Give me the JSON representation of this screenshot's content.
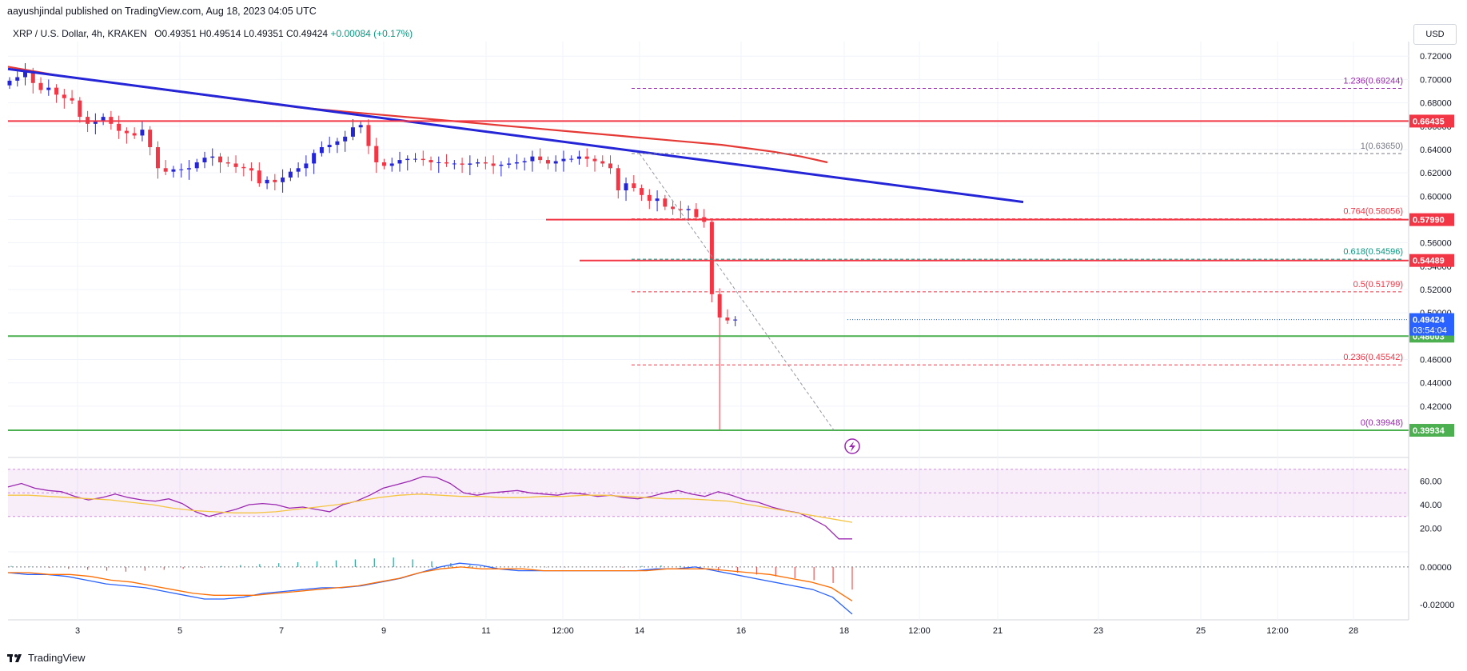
{
  "header": {
    "publisher": "aayushjindal published on TradingView.com, Aug 18, 2023 04:05 UTC",
    "symbol": "XRP / U.S. Dollar, 4h, KRAKEN",
    "open": "O0.49351",
    "high": "H0.49514",
    "low": "L0.49351",
    "close": "C0.49424",
    "change": "+0.00084 (+0.17%)",
    "currency": "USD"
  },
  "brand": {
    "label": "TradingView"
  },
  "colors": {
    "up": "#089981",
    "down": "#f23645",
    "trendline": "#2525d8",
    "ma": "#e53935",
    "resistance": "#f23645",
    "support": "#4caf50",
    "rsi": "#9c27b0",
    "rsi_ma": "#f5c542",
    "macd": "#2962ff",
    "signal": "#ff6d00",
    "fib": "#9c27b0",
    "price_tag": "#2962ff"
  },
  "chart_data": [
    {
      "type": "candlestick",
      "title": "XRP / U.S. Dollar, 4h, KRAKEN",
      "x_tick_labels": [
        "3",
        "5",
        "7",
        "9",
        "11",
        "12:00",
        "14",
        "16",
        "18",
        "12:00",
        "21",
        "23",
        "25",
        "12:00",
        "28"
      ],
      "y_tick_labels": [
        "0.72000",
        "0.70000",
        "0.68000",
        "0.66000",
        "0.64000",
        "0.62000",
        "0.60000",
        "0.58000",
        "0.56000",
        "0.54000",
        "0.52000",
        "0.50000",
        "0.46000",
        "0.44000",
        "0.42000"
      ],
      "ylim": [
        0.3925,
        0.7325
      ],
      "close_prices": [
        0.699,
        0.702,
        0.707,
        0.697,
        0.691,
        0.693,
        0.687,
        0.684,
        0.682,
        0.668,
        0.662,
        0.664,
        0.668,
        0.662,
        0.656,
        0.654,
        0.652,
        0.657,
        0.642,
        0.624,
        0.621,
        0.623,
        0.623,
        0.624,
        0.629,
        0.633,
        0.634,
        0.629,
        0.628,
        0.625,
        0.624,
        0.622,
        0.611,
        0.614,
        0.612,
        0.616,
        0.621,
        0.624,
        0.628,
        0.637,
        0.642,
        0.644,
        0.647,
        0.651,
        0.659,
        0.661,
        0.643,
        0.629,
        0.626,
        0.628,
        0.631,
        0.632,
        0.632,
        0.631,
        0.629,
        0.629,
        0.628,
        0.628,
        0.627,
        0.628,
        0.629,
        0.628,
        0.626,
        0.627,
        0.628,
        0.629,
        0.63,
        0.634,
        0.631,
        0.628,
        0.63,
        0.632,
        0.632,
        0.634,
        0.632,
        0.63,
        0.628,
        0.624,
        0.605,
        0.611,
        0.607,
        0.601,
        0.596,
        0.598,
        0.591,
        0.589,
        0.588,
        0.589,
        0.582,
        0.578,
        0.516,
        0.496,
        0.4935,
        0.49424
      ],
      "ma200": [
        0.711,
        0.707,
        0.703,
        0.7,
        0.697,
        0.694,
        0.691,
        0.688,
        0.685,
        0.682,
        0.679,
        0.676,
        0.674,
        0.672,
        0.67,
        0.668,
        0.666,
        0.664,
        0.662,
        0.66,
        0.658,
        0.656,
        0.654,
        0.652,
        0.65,
        0.648,
        0.646,
        0.644,
        0.641,
        0.638,
        0.634,
        0.629
      ],
      "trendline": {
        "start": 0.709,
        "end": 0.595
      },
      "horizontal_levels": [
        {
          "name": "resistance",
          "label": "0.66435",
          "value": 0.66435
        },
        {
          "name": "resistance",
          "label": "0.57990",
          "value": 0.5799
        },
        {
          "name": "resistance",
          "label": "0.54489",
          "value": 0.54489
        },
        {
          "name": "support",
          "label": "0.48003",
          "value": 0.48003
        },
        {
          "name": "support",
          "label": "0.39934",
          "value": 0.39934
        }
      ],
      "fibonacci": [
        {
          "ratio": "1.236",
          "label": "1.236(0.69244)",
          "value": 0.69244
        },
        {
          "ratio": "1",
          "label": "1(0.63650)",
          "value": 0.6365
        },
        {
          "ratio": "0.764",
          "label": "0.764(0.58056)",
          "value": 0.58056
        },
        {
          "ratio": "0.618",
          "label": "0.618(0.54596)",
          "value": 0.54596
        },
        {
          "ratio": "0.5",
          "label": "0.5(0.51799)",
          "value": 0.51799
        },
        {
          "ratio": "0.236",
          "label": "0.236(0.45542)",
          "value": 0.45542
        },
        {
          "ratio": "0",
          "label": "0(0.39948)",
          "value": 0.39948
        }
      ],
      "last_price": {
        "label": "0.49424",
        "countdown": "03:54:04",
        "value": 0.49424
      }
    },
    {
      "type": "line",
      "title": "RSI",
      "y_tick_labels": [
        "60.00",
        "40.00",
        "20.00"
      ],
      "ylim": [
        0,
        78
      ],
      "band": [
        30,
        70
      ],
      "series": [
        {
          "name": "rsi",
          "values": [
            55,
            58,
            54,
            52,
            51,
            47,
            44,
            46,
            49,
            46,
            44,
            43,
            45,
            41,
            34,
            30,
            33,
            36,
            40,
            41,
            40,
            37,
            38,
            36,
            34,
            40,
            43,
            48,
            54,
            57,
            60,
            64,
            63,
            58,
            50,
            48,
            50,
            51,
            52,
            50,
            49,
            48,
            50,
            49,
            47,
            48,
            46,
            45,
            47,
            50,
            52,
            49,
            47,
            51,
            48,
            44,
            42,
            38,
            35,
            33,
            28,
            22,
            11,
            11
          ]
        },
        {
          "name": "rsi-ma",
          "values": [
            48,
            48,
            47,
            46,
            45,
            44,
            42,
            40,
            37,
            35,
            34,
            33,
            33,
            34,
            36,
            38,
            40,
            43,
            46,
            48,
            49,
            48,
            47,
            47,
            46,
            46,
            47,
            47,
            48,
            48,
            47,
            46,
            45,
            45,
            44,
            43,
            40,
            37,
            34,
            31,
            28,
            25
          ]
        }
      ]
    },
    {
      "type": "line",
      "title": "MACD",
      "y_tick_labels": [
        "0.00000",
        "-0.02000"
      ],
      "ylim": [
        -0.028,
        0.008
      ],
      "series": [
        {
          "name": "macd",
          "values": [
            -0.003,
            -0.004,
            -0.004,
            -0.005,
            -0.007,
            -0.009,
            -0.01,
            -0.011,
            -0.013,
            -0.015,
            -0.017,
            -0.017,
            -0.016,
            -0.014,
            -0.013,
            -0.012,
            -0.011,
            -0.011,
            -0.01,
            -0.008,
            -0.006,
            -0.003,
            0.0,
            0.002,
            0.001,
            -0.001,
            -0.002,
            -0.002,
            -0.002,
            -0.002,
            -0.002,
            -0.002,
            -0.002,
            -0.001,
            -0.001,
            0.0,
            -0.002,
            -0.004,
            -0.006,
            -0.008,
            -0.01,
            -0.012,
            -0.016,
            -0.025
          ]
        },
        {
          "name": "signal",
          "values": [
            -0.003,
            -0.003,
            -0.004,
            -0.004,
            -0.005,
            -0.007,
            -0.008,
            -0.01,
            -0.012,
            -0.014,
            -0.015,
            -0.015,
            -0.015,
            -0.014,
            -0.013,
            -0.012,
            -0.011,
            -0.01,
            -0.008,
            -0.006,
            -0.003,
            -0.001,
            0.0,
            -0.001,
            -0.001,
            -0.001,
            -0.002,
            -0.002,
            -0.002,
            -0.002,
            -0.002,
            -0.002,
            -0.001,
            -0.001,
            -0.001,
            -0.002,
            -0.003,
            -0.004,
            -0.006,
            -0.008,
            -0.011,
            -0.018
          ]
        },
        {
          "name": "histogram",
          "values": [
            0.0005,
            0.0002,
            -0.0005,
            -0.001,
            -0.0015,
            -0.002,
            -0.0025,
            -0.002,
            -0.0015,
            -0.001,
            -0.0005,
            0.0005,
            0.001,
            0.0015,
            0.002,
            0.0025,
            0.003,
            0.0035,
            0.004,
            0.0045,
            0.005,
            0.004,
            0.003,
            0.002,
            0.001,
            0.0005,
            -0.0002,
            -0.0002,
            -0.0002,
            -0.0002,
            -0.0002,
            -0.0002,
            -0.0003,
            0.0005,
            0.0008,
            0.0005,
            -0.001,
            -0.002,
            -0.003,
            -0.004,
            -0.005,
            -0.006,
            -0.007,
            -0.0085,
            -0.012
          ]
        }
      ]
    }
  ]
}
